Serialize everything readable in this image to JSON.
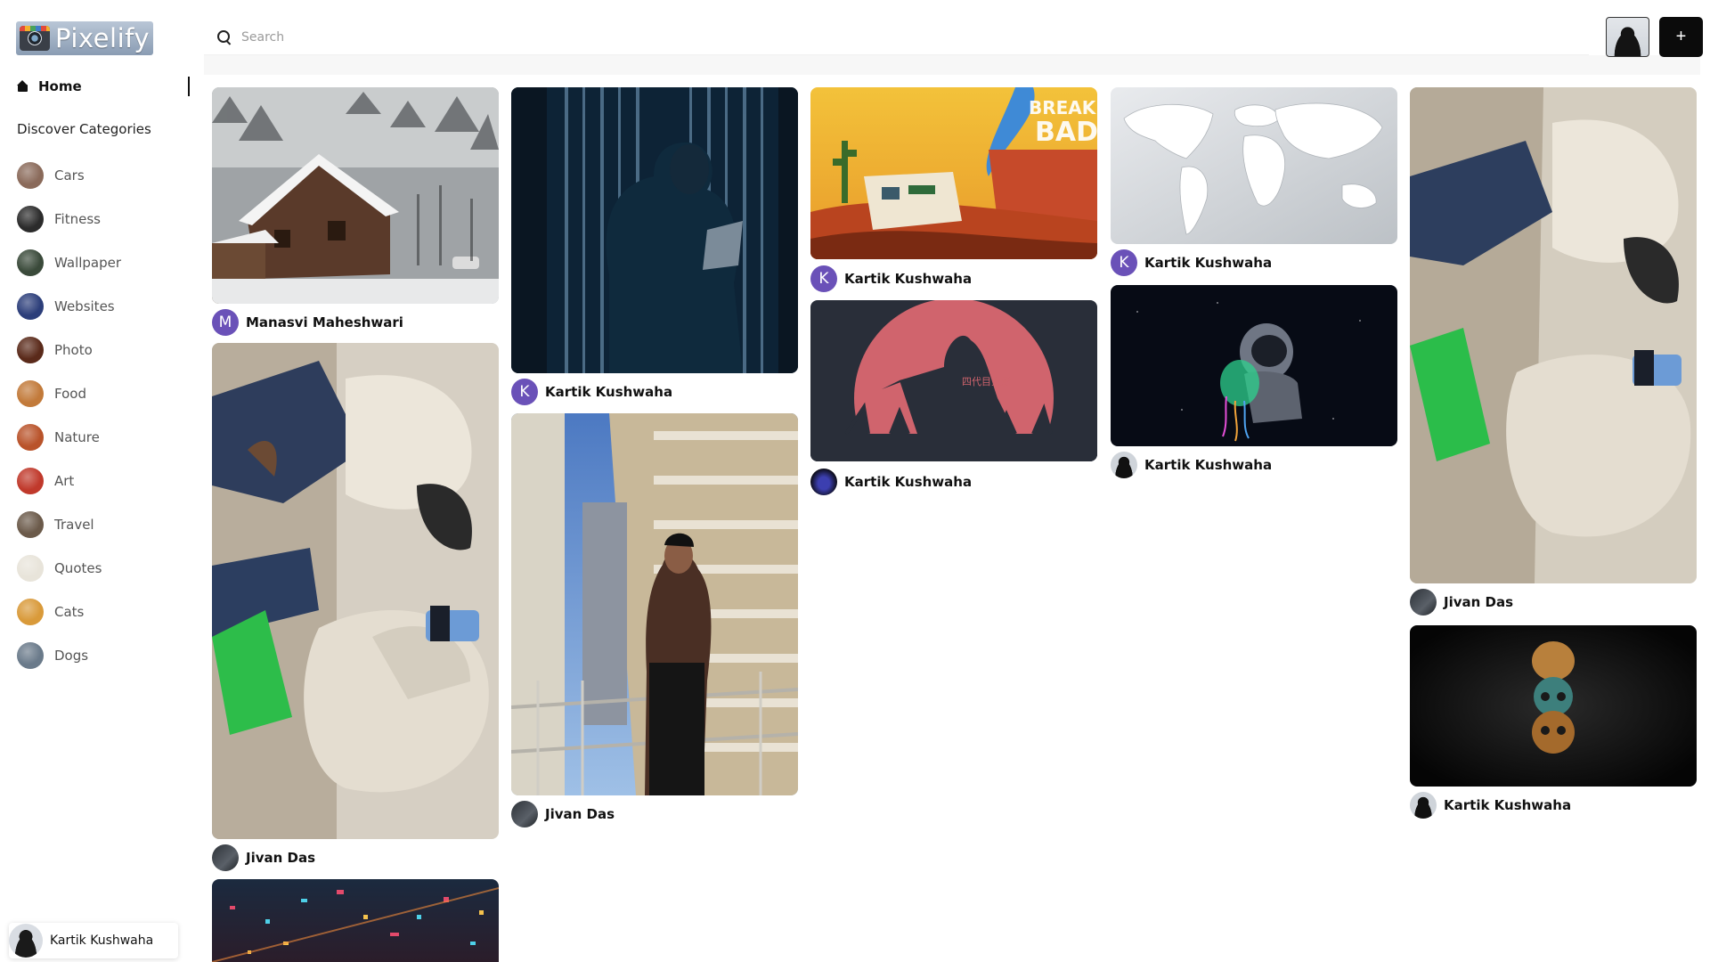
{
  "app": {
    "name": "Pixelify"
  },
  "sidebar": {
    "home_label": "Home",
    "categories_title": "Discover Categories",
    "categories": [
      {
        "label": "Cars",
        "color": "#8a6a5a"
      },
      {
        "label": "Fitness",
        "color": "#2b2b2b"
      },
      {
        "label": "Wallpaper",
        "color": "#3a4a3a"
      },
      {
        "label": "Websites",
        "color": "#2c3e7a"
      },
      {
        "label": "Photo",
        "color": "#5a2a1a"
      },
      {
        "label": "Food",
        "color": "#c27a3a"
      },
      {
        "label": "Nature",
        "color": "#b9532a"
      },
      {
        "label": "Art",
        "color": "#c0392b"
      },
      {
        "label": "Travel",
        "color": "#6b5a4a"
      },
      {
        "label": "Quotes",
        "color": "#e8e4da"
      },
      {
        "label": "Cats",
        "color": "#d99a3a"
      },
      {
        "label": "Dogs",
        "color": "#6a7a8a"
      }
    ],
    "profile_name": "Kartik Kushwaha"
  },
  "header": {
    "search_placeholder": "Search",
    "add_label": "+"
  },
  "pins": [
    {
      "author": "Manasvi Maheshwari",
      "initial": "M",
      "avatar": "letter",
      "image": "snow-house"
    },
    {
      "author": "Jivan Das",
      "avatar": "jivan",
      "image": "car-interior"
    },
    {
      "image": "city-lights"
    },
    {
      "author": "Kartik Kushwaha",
      "initial": "K",
      "avatar": "letter",
      "image": "hacker-code"
    },
    {
      "author": "Jivan Das",
      "avatar": "jivan",
      "image": "balcony-man"
    },
    {
      "author": "Kartik Kushwaha",
      "initial": "K",
      "avatar": "letter",
      "image": "breaking-bad",
      "image_text": "BREAKING BAD"
    },
    {
      "author": "Kartik Kushwaha",
      "avatar": "naruto",
      "image": "naruto-moon",
      "image_text": "四代目火影"
    },
    {
      "author": "Kartik Kushwaha",
      "initial": "K",
      "avatar": "letter",
      "image": "world-map"
    },
    {
      "author": "Kartik Kushwaha",
      "avatar": "dark",
      "image": "astronaut"
    },
    {
      "author": "Jivan Das",
      "avatar": "jivan",
      "image": "car-interior-2"
    },
    {
      "author": "Kartik Kushwaha",
      "avatar": "dark",
      "image": "skull-sculpture"
    }
  ]
}
